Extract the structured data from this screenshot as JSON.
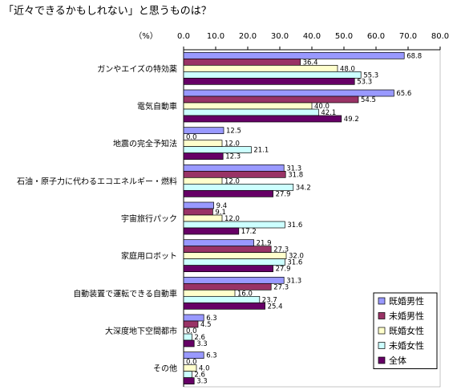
{
  "chart_data": {
    "type": "bar",
    "orientation": "horizontal",
    "title": "「近々できるかもしれない」と思うものは？",
    "x_label": "（%）",
    "categories": [
      "ガンやエイズの特効薬",
      "電気自動車",
      "地震の完全予知法",
      "石油・原子力に代わるエコエネルギー・燃料",
      "宇宙旅行パック",
      "家庭用ロボット",
      "自動装置で運転できる自動車",
      "大深度地下空間都市",
      "その他"
    ],
    "series": [
      {
        "name": "既婚男性",
        "color": "#9999ff",
        "values": [
          68.8,
          65.6,
          12.5,
          31.3,
          9.4,
          21.9,
          31.3,
          6.3,
          6.3
        ],
        "value_labels": [
          "68.8",
          "65.6",
          "12.5",
          "31.3",
          "9.4",
          "21.9",
          "31.3",
          "6.3",
          "6.3"
        ]
      },
      {
        "name": "未婚男性",
        "color": "#993366",
        "values": [
          36.4,
          54.5,
          0,
          31.8,
          9.1,
          27.3,
          27.3,
          4.5,
          0
        ],
        "value_labels": [
          "36.4",
          "54.5",
          "0.0",
          "31.8",
          "9.1",
          "27.3",
          "27.3",
          "4.5",
          "0.0"
        ]
      },
      {
        "name": "既婚女性",
        "color": "#ffffcc",
        "values": [
          48,
          40,
          12,
          12,
          12,
          32,
          16,
          0,
          4
        ],
        "value_labels": [
          "48.0",
          "40.0",
          "12.0",
          "12.0",
          "12.0",
          "32.0",
          "16.0",
          "0.0",
          "4.0"
        ]
      },
      {
        "name": "未婚女性",
        "color": "#ccffff",
        "values": [
          55.3,
          42.1,
          21.1,
          34.2,
          31.6,
          31.6,
          23.7,
          2.6,
          2.6
        ],
        "value_labels": [
          "55.3",
          "42.1",
          "21.1",
          "34.2",
          "31.6",
          "31.6",
          "23.7",
          "2.6",
          "2.6"
        ]
      },
      {
        "name": "全体",
        "color": "#660066",
        "values": [
          53.3,
          49.2,
          12.3,
          27.9,
          17.2,
          27.9,
          25.4,
          3.3,
          3.3
        ],
        "value_labels": [
          "53.3",
          "49.2",
          "12.3",
          "27.9",
          "17.2",
          "27.9",
          "25.4",
          "3.3",
          "3.3"
        ]
      }
    ],
    "xlim": [
      0,
      80
    ],
    "xticks": [
      {
        "value": 0,
        "label": "0.0"
      },
      {
        "value": 10,
        "label": "10.0"
      },
      {
        "value": 20,
        "label": "20.0"
      },
      {
        "value": 30,
        "label": "30.0"
      },
      {
        "value": 40,
        "label": "40.0"
      },
      {
        "value": 50,
        "label": "50.0"
      },
      {
        "value": 60,
        "label": "60.0"
      },
      {
        "value": 70,
        "label": "70.0"
      },
      {
        "value": 80,
        "label": "80.0"
      }
    ],
    "legend": "lower right"
  }
}
